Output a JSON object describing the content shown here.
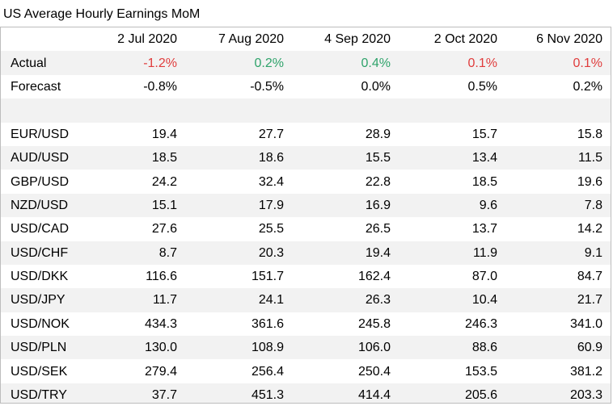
{
  "title": "US Average Hourly Earnings MoM",
  "colors": {
    "negative": "#e03c3c",
    "positive": "#2fa36b",
    "row_shade": "#f2f2f2",
    "border": "#bdbdbd"
  },
  "columns": [
    "",
    "2 Jul 2020",
    "7 Aug 2020",
    "4 Sep 2020",
    "2 Oct 2020",
    "6 Nov 2020"
  ],
  "actual": {
    "label": "Actual",
    "values": [
      "-1.2%",
      "0.2%",
      "0.4%",
      "0.1%",
      "0.1%"
    ],
    "tones": [
      "neg",
      "pos",
      "pos",
      "neg",
      "neg"
    ]
  },
  "forecast": {
    "label": "Forecast",
    "values": [
      "-0.8%",
      "-0.5%",
      "0.0%",
      "0.5%",
      "0.2%"
    ]
  },
  "pairs": [
    {
      "label": "EUR/USD",
      "values": [
        "19.4",
        "27.7",
        "28.9",
        "15.7",
        "15.8"
      ]
    },
    {
      "label": "AUD/USD",
      "values": [
        "18.5",
        "18.6",
        "15.5",
        "13.4",
        "11.5"
      ]
    },
    {
      "label": "GBP/USD",
      "values": [
        "24.2",
        "32.4",
        "22.8",
        "18.5",
        "19.6"
      ]
    },
    {
      "label": "NZD/USD",
      "values": [
        "15.1",
        "17.9",
        "16.9",
        "9.6",
        "7.8"
      ]
    },
    {
      "label": "USD/CAD",
      "values": [
        "27.6",
        "25.5",
        "26.5",
        "13.7",
        "14.2"
      ]
    },
    {
      "label": "USD/CHF",
      "values": [
        "8.7",
        "20.3",
        "19.4",
        "11.9",
        "9.1"
      ]
    },
    {
      "label": "USD/DKK",
      "values": [
        "116.6",
        "151.7",
        "162.4",
        "87.0",
        "84.7"
      ]
    },
    {
      "label": "USD/JPY",
      "values": [
        "11.7",
        "24.1",
        "26.3",
        "10.4",
        "21.7"
      ]
    },
    {
      "label": "USD/NOK",
      "values": [
        "434.3",
        "361.6",
        "245.8",
        "246.3",
        "341.0"
      ]
    },
    {
      "label": "USD/PLN",
      "values": [
        "130.0",
        "108.9",
        "106.0",
        "88.6",
        "60.9"
      ]
    },
    {
      "label": "USD/SEK",
      "values": [
        "279.4",
        "256.4",
        "250.4",
        "153.5",
        "381.2"
      ]
    },
    {
      "label": "USD/TRY",
      "values": [
        "37.7",
        "451.3",
        "414.4",
        "205.6",
        "203.3"
      ]
    }
  ]
}
